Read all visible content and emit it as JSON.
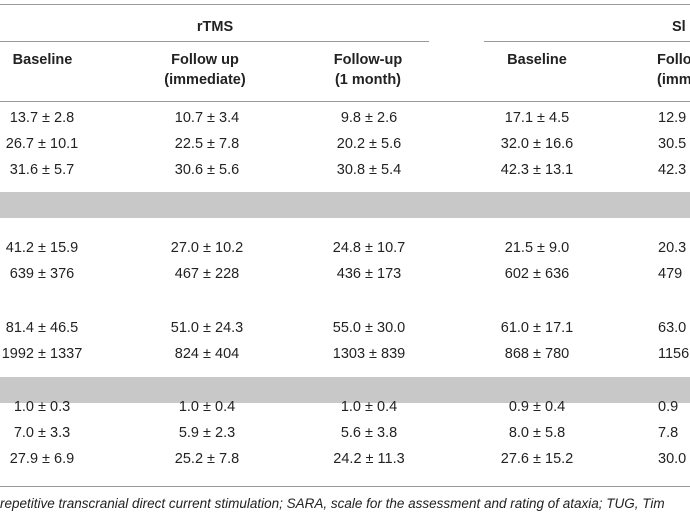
{
  "table": {
    "group_headers": [
      "rTMS",
      "Sl"
    ],
    "col_headers": [
      [
        "Baseline"
      ],
      [
        "Follow up",
        "(immediate)"
      ],
      [
        "Follow-up",
        "(1 month)"
      ],
      [
        "Baseline"
      ],
      [
        "Follo",
        "(imme"
      ]
    ],
    "rows": [
      [
        "13.7 ± 2.8",
        "10.7 ± 3.4",
        "9.8 ± 2.6",
        "17.1 ± 4.5",
        "12.9"
      ],
      [
        "26.7 ± 10.1",
        "22.5 ± 7.8",
        "20.2 ± 5.6",
        "32.0 ± 16.6",
        "30.5"
      ],
      [
        "31.6 ± 5.7",
        "30.6 ± 5.6",
        "30.8 ± 5.4",
        "42.3 ± 13.1",
        "42.3"
      ],
      [
        "41.2 ± 15.9",
        "27.0 ± 10.2",
        "24.8 ± 10.7",
        "21.5 ± 9.0",
        "20.3"
      ],
      [
        "639 ± 376",
        "467 ± 228",
        "436 ± 173",
        "602 ± 636",
        "479"
      ],
      [
        "81.4 ± 46.5",
        "51.0 ± 24.3",
        "55.0 ± 30.0",
        "61.0 ± 17.1",
        "63.0"
      ],
      [
        "1992 ± 1337",
        "824 ± 404",
        "1303 ± 839",
        "868 ± 780",
        "1156"
      ],
      [
        "1.0 ± 0.3",
        "1.0 ± 0.4",
        "1.0 ± 0.4",
        "0.9 ± 0.4",
        "0.9"
      ],
      [
        "7.0 ± 3.3",
        "5.9 ± 2.3",
        "5.6 ± 3.8",
        "8.0 ± 5.8",
        "7.8"
      ],
      [
        "27.9 ± 6.9",
        "25.2 ± 7.8",
        "24.2 ± 11.3",
        "27.6 ± 15.2",
        "30.0"
      ]
    ]
  },
  "footnote": "repetitive transcranial direct current stimulation; SARA, scale for the assessment and rating of ataxia; TUG, Tim"
}
